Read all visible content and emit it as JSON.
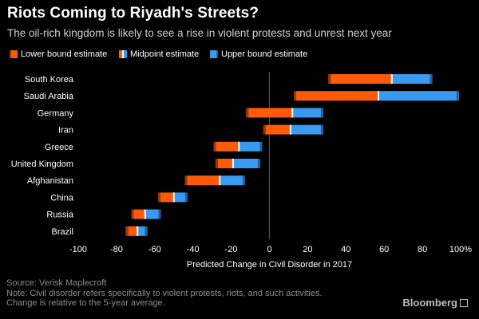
{
  "header": {
    "title": "Riots Coming to Riyadh's Streets?",
    "subtitle": "The oil-rich kingdom is likely to see a rise in violent protests and unrest next year"
  },
  "legend": {
    "lower": "Lower bound estimate",
    "mid": "Midpoint estimate",
    "upper": "Upper bound estimate"
  },
  "colors": {
    "background": "#000000",
    "lower": "#ff5a0a",
    "lower_cap": "#9c3608",
    "upper": "#3a9af1",
    "upper_cap": "#2a5f93",
    "midpoint": "#ffffff",
    "zero_line": "#555555"
  },
  "chart_data": {
    "type": "range_bar",
    "title": "Riots Coming to Riyadh's Streets?",
    "subtitle": "The oil-rich kingdom is likely to see a rise in violent protests and unrest next year",
    "xlabel": "Predicted Change in Civil Disorder in 2017",
    "ylabel": "",
    "xlim": [
      -100,
      100
    ],
    "x_ticks": [
      "-100",
      "-80",
      "-60",
      "-40",
      "-20",
      "0",
      "20",
      "40",
      "60",
      "80",
      "100%"
    ],
    "tick_values": [
      -100,
      -80,
      -60,
      -40,
      -20,
      0,
      20,
      40,
      60,
      80,
      100
    ],
    "series": [
      {
        "name": "Lower bound estimate"
      },
      {
        "name": "Midpoint estimate"
      },
      {
        "name": "Upper bound estimate"
      }
    ],
    "categories": [
      "South Korea",
      "Saudi Arabia",
      "Germany",
      "Iran",
      "Greece",
      "United Kingdom",
      "Afghanistan",
      "China",
      "Russia",
      "Brazil"
    ],
    "lower": [
      32,
      14,
      -11,
      -2,
      -28,
      -27,
      -43,
      -57,
      -71,
      -74
    ],
    "mid": [
      64,
      57,
      12,
      11,
      -16,
      -19,
      -26,
      -50,
      -65,
      -69
    ],
    "upper": [
      84,
      98,
      27,
      27,
      -5,
      -6,
      -14,
      -44,
      -58,
      -65
    ]
  },
  "footer": {
    "source": "Source: Verisk Maplecroft",
    "note": "Note: Civil disorder refers specifically to violent protests, riots, and such activities.",
    "note2": "Change is relative to the 5-year average."
  },
  "brand": {
    "name": "Bloomberg"
  }
}
